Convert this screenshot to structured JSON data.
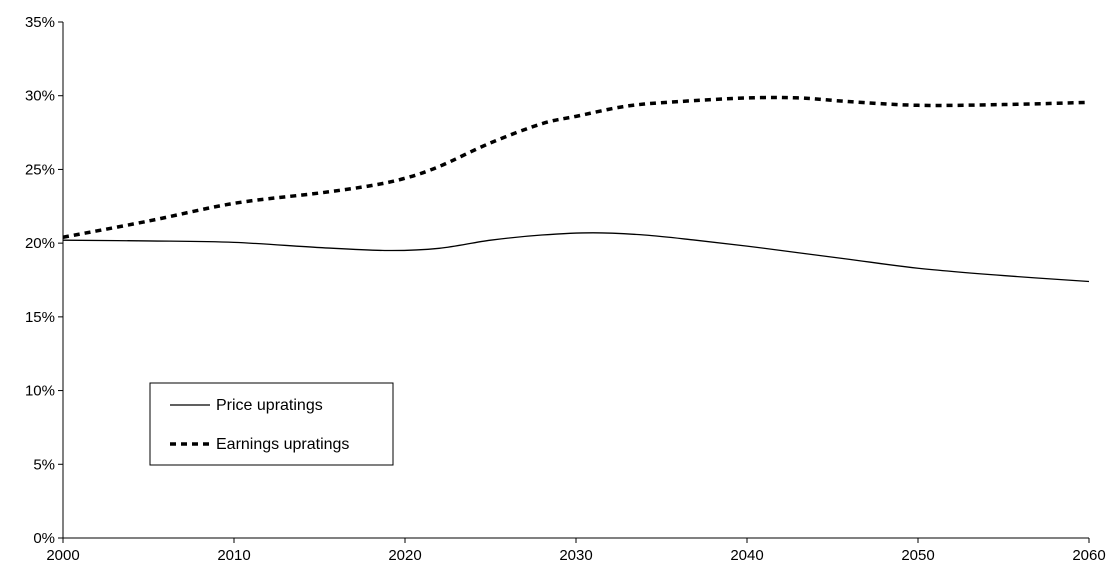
{
  "chart_data": {
    "type": "line",
    "title": "",
    "xlabel": "",
    "ylabel": "",
    "xlim": [
      2000,
      2060
    ],
    "ylim": [
      0,
      35
    ],
    "x_ticks": [
      2000,
      2010,
      2020,
      2030,
      2040,
      2050,
      2060
    ],
    "x_tick_labels": [
      "2000",
      "2010",
      "2020",
      "2030",
      "2040",
      "2050",
      "2060"
    ],
    "y_ticks": [
      0,
      5,
      10,
      15,
      20,
      25,
      30,
      35
    ],
    "y_tick_labels": [
      "0%",
      "5%",
      "10%",
      "15%",
      "20%",
      "25%",
      "30%",
      "35%"
    ],
    "grid": false,
    "legend_position": "bottom-left",
    "series": [
      {
        "name": "Price upratings",
        "color": "#000000",
        "style": "solid",
        "x": [
          2000,
          2005,
          2010,
          2015,
          2019,
          2022,
          2025,
          2028,
          2031,
          2034,
          2037,
          2040,
          2043,
          2046,
          2050,
          2055,
          2060
        ],
        "y": [
          20.2,
          20.15,
          20.05,
          19.7,
          19.5,
          19.65,
          20.2,
          20.55,
          20.7,
          20.55,
          20.2,
          19.8,
          19.35,
          18.9,
          18.3,
          17.8,
          17.4
        ]
      },
      {
        "name": "Earnings upratings",
        "color": "#000000",
        "style": "dashed",
        "x": [
          2000,
          2005,
          2010,
          2015,
          2018,
          2020,
          2022,
          2025,
          2028,
          2030,
          2033,
          2036,
          2040,
          2043,
          2046,
          2050,
          2055,
          2060
        ],
        "y": [
          20.4,
          21.5,
          22.7,
          23.4,
          23.9,
          24.4,
          25.2,
          26.8,
          28.1,
          28.6,
          29.3,
          29.6,
          29.85,
          29.85,
          29.6,
          29.35,
          29.4,
          29.55
        ]
      }
    ]
  }
}
